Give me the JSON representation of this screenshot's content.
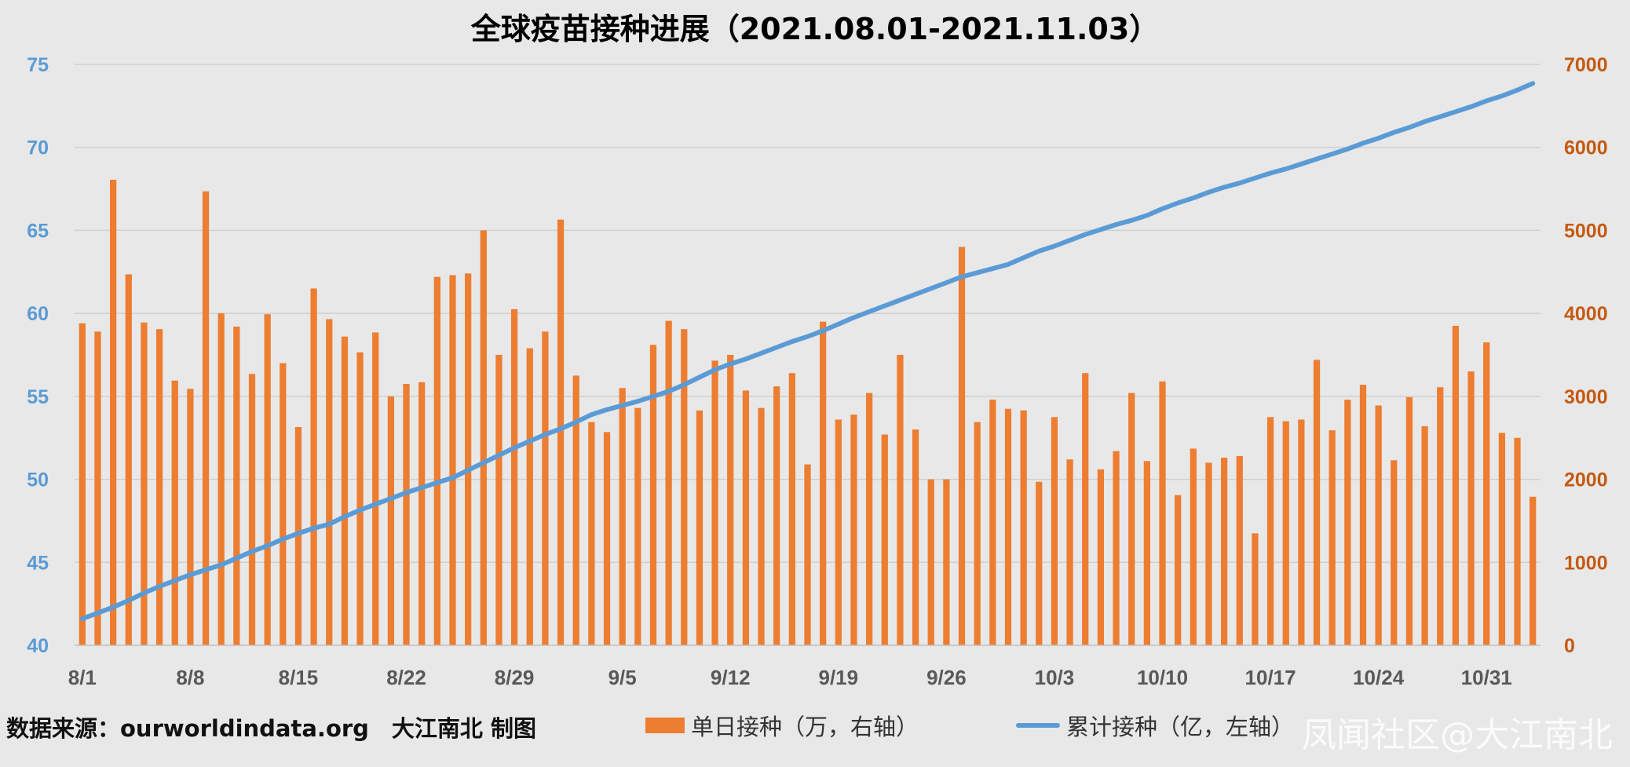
{
  "chart_data": {
    "type": "bar+line",
    "title": "全球疫苗接种进展（2021.08.01-2021.11.03）",
    "categories": [
      "8/1",
      "8/2",
      "8/3",
      "8/4",
      "8/5",
      "8/6",
      "8/7",
      "8/8",
      "8/9",
      "8/10",
      "8/11",
      "8/12",
      "8/13",
      "8/14",
      "8/15",
      "8/16",
      "8/17",
      "8/18",
      "8/19",
      "8/20",
      "8/21",
      "8/22",
      "8/23",
      "8/24",
      "8/25",
      "8/26",
      "8/27",
      "8/28",
      "8/29",
      "8/30",
      "8/31",
      "9/1",
      "9/2",
      "9/3",
      "9/4",
      "9/5",
      "9/6",
      "9/7",
      "9/8",
      "9/9",
      "9/10",
      "9/11",
      "9/12",
      "9/13",
      "9/14",
      "9/15",
      "9/16",
      "9/17",
      "9/18",
      "9/19",
      "9/20",
      "9/21",
      "9/22",
      "9/23",
      "9/24",
      "9/25",
      "9/26",
      "9/27",
      "9/28",
      "9/29",
      "9/30",
      "10/1",
      "10/2",
      "10/3",
      "10/4",
      "10/5",
      "10/6",
      "10/7",
      "10/8",
      "10/9",
      "10/10",
      "10/11",
      "10/12",
      "10/13",
      "10/14",
      "10/15",
      "10/16",
      "10/17",
      "10/18",
      "10/19",
      "10/20",
      "10/21",
      "10/22",
      "10/23",
      "10/24",
      "10/25",
      "10/26",
      "10/27",
      "10/28",
      "10/29",
      "10/30",
      "10/31",
      "11/1",
      "11/2",
      "11/3"
    ],
    "x_tick_labels": [
      "8/1",
      "8/8",
      "8/15",
      "8/22",
      "8/29",
      "9/5",
      "9/12",
      "9/19",
      "9/26",
      "10/3",
      "10/10",
      "10/17",
      "10/24",
      "10/31"
    ],
    "series": [
      {
        "name": "单日接种（万，右轴）",
        "type": "bar",
        "axis": "right",
        "color": "#ed7d31",
        "values": [
          3880,
          3780,
          5610,
          4470,
          3890,
          3810,
          3190,
          3090,
          5470,
          4000,
          3840,
          3270,
          3990,
          3400,
          2630,
          4300,
          3930,
          3720,
          3530,
          3770,
          3000,
          3150,
          3170,
          4440,
          4460,
          4480,
          5000,
          3500,
          4050,
          3580,
          3780,
          5130,
          3250,
          2690,
          2570,
          3100,
          2860,
          3620,
          3910,
          3810,
          2830,
          3430,
          3500,
          3070,
          2860,
          3120,
          3280,
          2180,
          3900,
          2720,
          2780,
          3040,
          2540,
          3500,
          2600,
          2000,
          2000,
          4800,
          2690,
          2960,
          2850,
          2830,
          1970,
          2750,
          2240,
          3280,
          2120,
          2340,
          3040,
          2220,
          3180,
          1810,
          2370,
          2200,
          2260,
          2280,
          1350,
          2750,
          2700,
          2720,
          3440,
          2590,
          2960,
          3140,
          2890,
          2230,
          2990,
          2640,
          3110,
          3850,
          3300,
          3650,
          2560,
          2500,
          1790
        ]
      },
      {
        "name": "累计接种（亿，左轴）",
        "type": "line",
        "axis": "left",
        "color": "#5b9bd5",
        "values": [
          41.6,
          41.95,
          42.3,
          42.7,
          43.15,
          43.55,
          43.9,
          44.25,
          44.55,
          44.85,
          45.25,
          45.65,
          46.0,
          46.4,
          46.75,
          47.05,
          47.3,
          47.75,
          48.15,
          48.5,
          48.85,
          49.2,
          49.5,
          49.8,
          50.1,
          50.55,
          51.0,
          51.45,
          51.9,
          52.3,
          52.7,
          53.05,
          53.45,
          53.9,
          54.2,
          54.45,
          54.7,
          55.0,
          55.3,
          55.7,
          56.15,
          56.6,
          56.95,
          57.25,
          57.6,
          57.95,
          58.3,
          58.6,
          58.95,
          59.35,
          59.75,
          60.1,
          60.45,
          60.8,
          61.15,
          61.5,
          61.85,
          62.2,
          62.45,
          62.7,
          62.95,
          63.35,
          63.75,
          64.05,
          64.4,
          64.75,
          65.05,
          65.35,
          65.6,
          65.9,
          66.3,
          66.65,
          66.95,
          67.3,
          67.6,
          67.85,
          68.15,
          68.45,
          68.7,
          69.0,
          69.3,
          69.6,
          69.9,
          70.25,
          70.55,
          70.9,
          71.2,
          71.55,
          71.85,
          72.15,
          72.45,
          72.8,
          73.1,
          73.45,
          73.85
        ]
      }
    ],
    "y_left": {
      "min": 40,
      "max": 75,
      "ticks": [
        40,
        45,
        50,
        55,
        60,
        65,
        70,
        75
      ]
    },
    "y_right": {
      "min": 0,
      "max": 7000,
      "ticks": [
        0,
        1000,
        2000,
        3000,
        4000,
        5000,
        6000,
        7000
      ]
    },
    "grid": true,
    "legend_position": "bottom-center"
  },
  "footer": {
    "source": "数据来源：ourworldindata.org　大江南北 制图"
  },
  "legend": {
    "bar_label": "单日接种（万，右轴）",
    "line_label": "累计接种（亿，左轴）"
  },
  "watermark": "凤闻社区@大江南北"
}
